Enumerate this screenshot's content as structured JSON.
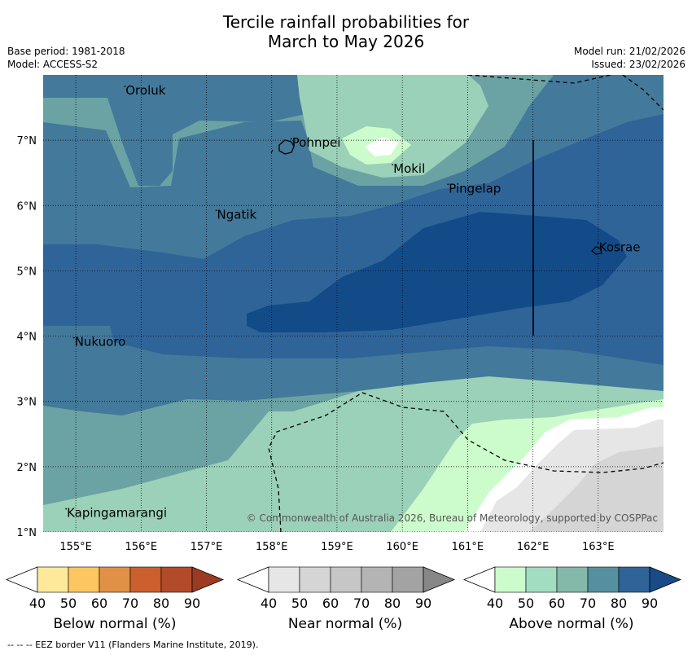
{
  "header": {
    "title_line1": "Tercile rainfall probabilities for",
    "title_line2": "March to May 2026",
    "base_period": "Base period: 1981-2018",
    "model": "Model: ACCESS-S2",
    "model_run": "Model run: 21/02/2026",
    "issued": "Issued: 23/02/2026"
  },
  "map": {
    "lon_min": 154.5,
    "lon_max": 164.0,
    "lat_min": 1.0,
    "lat_max": 8.0,
    "lon_ticks": [
      {
        "v": 155,
        "label": "155°E"
      },
      {
        "v": 156,
        "label": "156°E"
      },
      {
        "v": 157,
        "label": "157°E"
      },
      {
        "v": 158,
        "label": "158°E"
      },
      {
        "v": 159,
        "label": "159°E"
      },
      {
        "v": 160,
        "label": "160°E"
      },
      {
        "v": 161,
        "label": "161°E"
      },
      {
        "v": 162,
        "label": "162°E"
      },
      {
        "v": 163,
        "label": "163°E"
      }
    ],
    "lat_ticks": [
      {
        "v": 7,
        "label": "7°N"
      },
      {
        "v": 6,
        "label": "6°N"
      },
      {
        "v": 5,
        "label": "5°N"
      },
      {
        "v": 4,
        "label": "4°N"
      },
      {
        "v": 3,
        "label": "3°N"
      },
      {
        "v": 2,
        "label": "2°N"
      },
      {
        "v": 1,
        "label": "1°N"
      }
    ],
    "places": [
      {
        "name": "Oroluk",
        "lon": 155.75,
        "lat": 7.7
      },
      {
        "name": "Pohnpei",
        "lon": 158.3,
        "lat": 6.9
      },
      {
        "name": "Mokil",
        "lon": 159.85,
        "lat": 6.5
      },
      {
        "name": "Pingelap",
        "lon": 160.7,
        "lat": 6.2
      },
      {
        "name": "Ngatik",
        "lon": 157.15,
        "lat": 5.8
      },
      {
        "name": "Kosrae",
        "lon": 163.0,
        "lat": 5.3
      },
      {
        "name": "Nukuoro",
        "lon": 154.97,
        "lat": 3.85
      },
      {
        "name": "Kapingamarangi",
        "lon": 154.85,
        "lat": 1.23
      }
    ],
    "copyright": "© Commonwealth of Australia 2026, Bureau of Meteorology, supported by COSPPac"
  },
  "colorbars": [
    {
      "name": "below",
      "title": "Below normal (%)",
      "colors": [
        "#fee99b",
        "#fdc661",
        "#e09146",
        "#cc5f2e",
        "#b24b29"
      ],
      "arrow_color": "#9c3b22",
      "ticks": [
        "40",
        "50",
        "60",
        "70",
        "80",
        "90"
      ]
    },
    {
      "name": "near",
      "title": "Near normal (%)",
      "colors": [
        "#e6e6e6",
        "#d5d5d5",
        "#c6c6c6",
        "#b4b4b4",
        "#a3a3a3"
      ],
      "arrow_color": "#878787",
      "ticks": [
        "40",
        "50",
        "60",
        "70",
        "80",
        "90"
      ]
    },
    {
      "name": "above",
      "title": "Above normal (%)",
      "colors": [
        "#ccfccb",
        "#a2dcc1",
        "#84b9aa",
        "#5590a0",
        "#2f6499"
      ],
      "arrow_color": "#194b88",
      "ticks": [
        "40",
        "50",
        "60",
        "70",
        "80",
        "90"
      ]
    }
  ],
  "footnote": "--  --  -- EEZ border V11 (Flanders Marine Institute, 2019)."
}
